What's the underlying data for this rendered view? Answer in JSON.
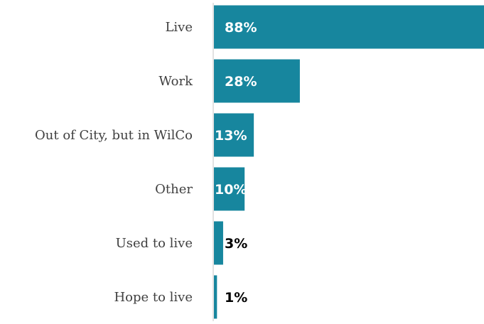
{
  "chart_data": {
    "type": "bar",
    "orientation": "horizontal",
    "categories": [
      "Live",
      "Work",
      "Out of City, but in WilCo",
      "Other",
      "Used to live",
      "Hope to live"
    ],
    "values": [
      88,
      28,
      13,
      10,
      3,
      1
    ],
    "value_labels": [
      "88%",
      "28%",
      "13%",
      "10%",
      "3%",
      "1%"
    ],
    "xlim": [
      0,
      88
    ],
    "grid": false,
    "legend": "none",
    "colors": {
      "bar": "#17869e",
      "axis": "#d9d9d9",
      "category_text": "#404040",
      "value_text_inside": "#ffffff",
      "value_text_outside": "#000000"
    }
  }
}
